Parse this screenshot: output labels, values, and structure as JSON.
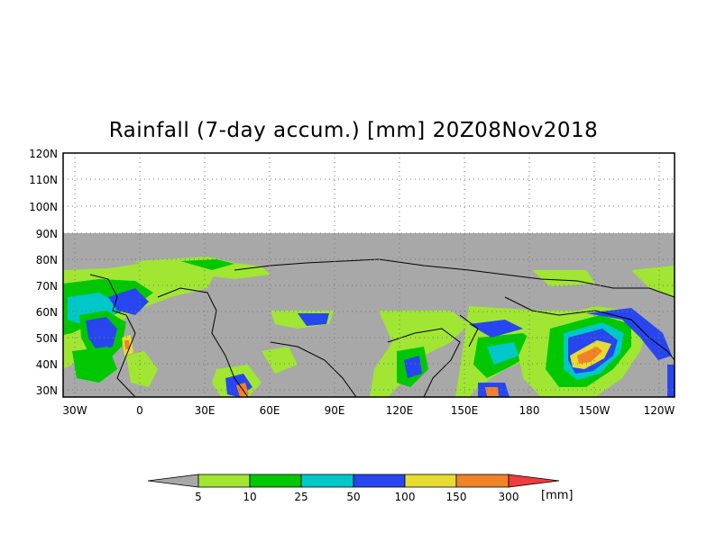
{
  "map": {
    "title": "Rainfall (7-day accum.) [mm] 20Z08Nov2018",
    "lat_labels": [
      "120N",
      "110N",
      "100N",
      "90N",
      "80N",
      "70N",
      "60N",
      "50N",
      "40N",
      "30N"
    ],
    "lon_labels": [
      "30W",
      "0",
      "30E",
      "60E",
      "90E",
      "120E",
      "150E",
      "180",
      "150W",
      "120W"
    ],
    "land_color": "#a8a8a8",
    "grid": "dotted"
  },
  "colorbar": {
    "ticks": [
      "5",
      "10",
      "25",
      "50",
      "100",
      "150",
      "300"
    ],
    "unit": "[mm]",
    "colors": [
      "#a8a8a8",
      "#a0e632",
      "#00c800",
      "#00c8c8",
      "#2846f0",
      "#e6dc32",
      "#f08228",
      "#f03c3c"
    ]
  }
}
